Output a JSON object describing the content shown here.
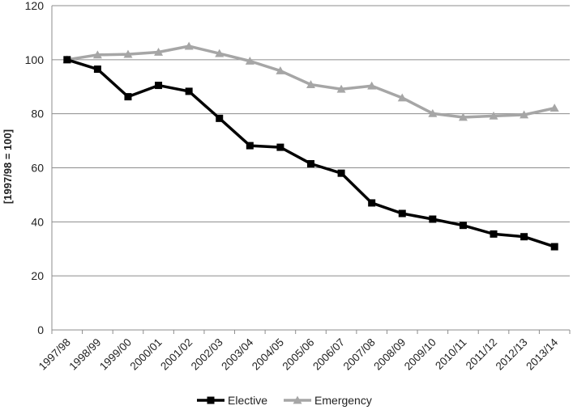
{
  "chart_data": {
    "type": "line",
    "title": "",
    "xlabel": "",
    "ylabel": "[1997/98 = 100]",
    "ylim": [
      0,
      120
    ],
    "yticks": [
      0,
      20,
      40,
      60,
      80,
      100,
      120
    ],
    "grid": "horizontal",
    "legend_position": "bottom",
    "categories": [
      "1997/98",
      "1998/99",
      "1999/00",
      "2000/01",
      "2001/02",
      "2002/03",
      "2003/04",
      "2004/05",
      "2005/06",
      "2006/07",
      "2007/08",
      "2008/09",
      "2009/10",
      "2010/11",
      "2011/12",
      "2012/13",
      "2013/14"
    ],
    "series": [
      {
        "name": "Elective",
        "color": "#000000",
        "marker": "square",
        "values": [
          100,
          96.5,
          86.3,
          90.5,
          88.3,
          78.3,
          68.2,
          67.6,
          61.5,
          58.0,
          47.0,
          43.1,
          41.0,
          38.7,
          35.5,
          34.5,
          30.8
        ]
      },
      {
        "name": "Emergency",
        "color": "#a6a6a6",
        "marker": "triangle",
        "values": [
          100,
          101.8,
          102.0,
          102.8,
          105.0,
          102.3,
          99.5,
          95.9,
          90.8,
          89.1,
          90.3,
          85.9,
          80.1,
          78.7,
          79.2,
          79.6,
          82.1
        ]
      }
    ]
  }
}
